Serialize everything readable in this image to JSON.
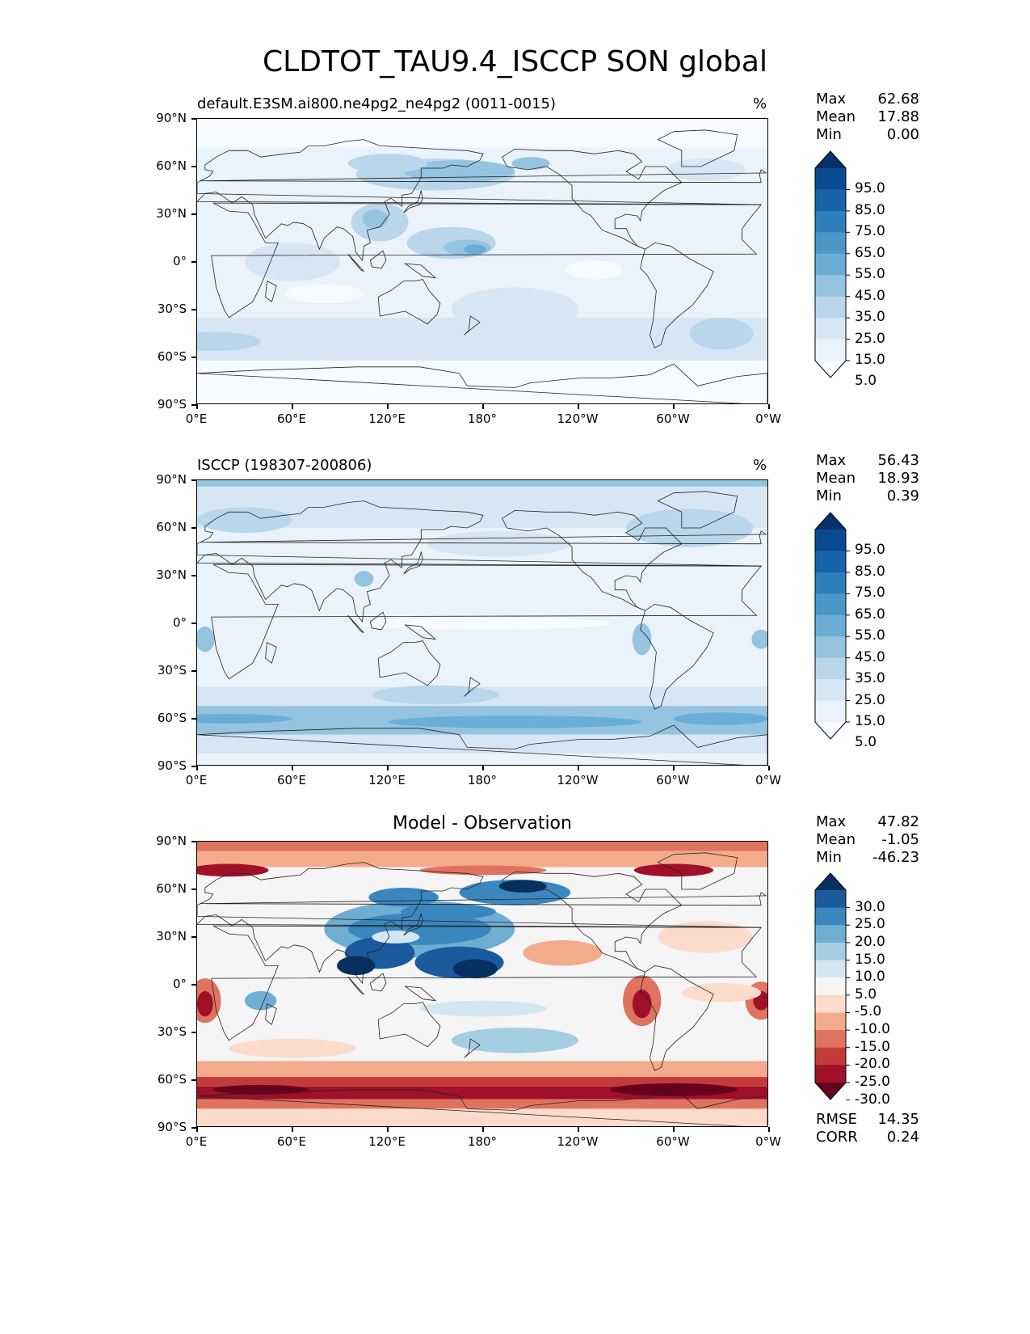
{
  "title": "CLDTOT_TAU9.4_ISCCP SON global",
  "panels": [
    {
      "title": "default.E3SM.ai800.ne4pg2_ne4pg2 (0011-0015)",
      "units": "%",
      "stats": [
        {
          "label": "Max",
          "value": "62.68"
        },
        {
          "label": "Mean",
          "value": "17.88"
        },
        {
          "label": "Min",
          "value": "0.00"
        }
      ],
      "colorbar": [
        "95.0",
        "85.0",
        "75.0",
        "65.0",
        "55.0",
        "45.0",
        "35.0",
        "25.0",
        "15.0",
        "5.0"
      ]
    },
    {
      "title": "ISCCP (198307-200806)",
      "units": "%",
      "stats": [
        {
          "label": "Max",
          "value": "56.43"
        },
        {
          "label": "Mean",
          "value": "18.93"
        },
        {
          "label": "Min",
          "value": "0.39"
        }
      ],
      "colorbar": [
        "95.0",
        "85.0",
        "75.0",
        "65.0",
        "55.0",
        "45.0",
        "35.0",
        "25.0",
        "15.0",
        "5.0"
      ]
    },
    {
      "title": "Model - Observation",
      "units": "",
      "stats": [
        {
          "label": "Max",
          "value": "47.82"
        },
        {
          "label": "Mean",
          "value": "-1.05"
        },
        {
          "label": "Min",
          "value": "-46.23"
        }
      ],
      "colorbar": [
        "30.0",
        "25.0",
        "20.0",
        "15.0",
        "10.0",
        "5.0",
        "-5.0",
        "-10.0",
        "-15.0",
        "-20.0",
        "-25.0",
        "-30.0"
      ],
      "metrics": [
        {
          "label": "RMSE",
          "value": "14.35"
        },
        {
          "label": "CORR",
          "value": "0.24"
        }
      ]
    }
  ],
  "axes": {
    "yticks": [
      "90°N",
      "60°N",
      "30°N",
      "0°",
      "30°S",
      "60°S",
      "90°S"
    ],
    "xticks": [
      "0°E",
      "60°E",
      "120°E",
      "180°",
      "120°W",
      "60°W",
      "0°W"
    ]
  },
  "colors": {
    "blues": [
      "#08306b",
      "#0a4a90",
      "#1764ab",
      "#2e7ebc",
      "#4a98c9",
      "#6aaed6",
      "#94c4df",
      "#b9d6ea",
      "#d6e6f4",
      "#eaf2fb",
      "#f7fbff"
    ],
    "diverging": [
      "#053061",
      "#1b5a9c",
      "#3a87bf",
      "#6faed3",
      "#a6cee3",
      "#d4e6f1",
      "#f5f5f5",
      "#fbdccc",
      "#f3ab8c",
      "#e0735f",
      "#c23b3a",
      "#a01028",
      "#67001f"
    ]
  }
}
